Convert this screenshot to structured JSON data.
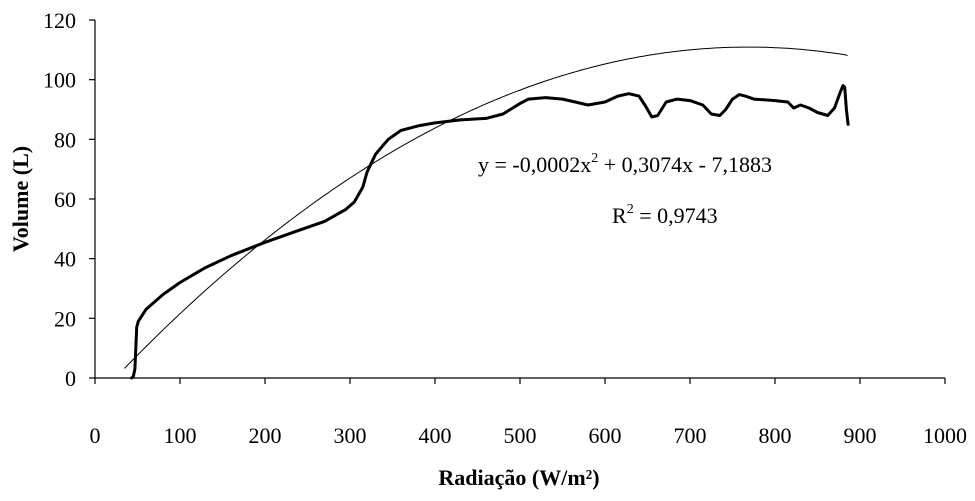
{
  "chart_data": {
    "type": "line",
    "xlabel": "Radiação (W/m²)",
    "ylabel": "Volume (L)",
    "xlim": [
      0,
      1000
    ],
    "ylim": [
      0,
      120
    ],
    "xticks": [
      "0",
      "100",
      "200",
      "300",
      "400",
      "500",
      "600",
      "700",
      "800",
      "900",
      "1000"
    ],
    "yticks": [
      "0",
      "20",
      "40",
      "60",
      "80",
      "100",
      "120"
    ],
    "grid": false,
    "legend": "none",
    "series": [
      {
        "style": "thick",
        "color": "#000000",
        "points": [
          [
            43,
            0
          ],
          [
            45,
            0.5
          ],
          [
            47,
            3
          ],
          [
            48,
            10
          ],
          [
            49,
            17
          ],
          [
            51,
            19
          ],
          [
            60,
            23
          ],
          [
            80,
            28
          ],
          [
            100,
            32
          ],
          [
            130,
            37
          ],
          [
            160,
            41
          ],
          [
            200,
            45.5
          ],
          [
            240,
            49.5
          ],
          [
            270,
            52.5
          ],
          [
            295,
            56.5
          ],
          [
            305,
            59
          ],
          [
            315,
            64
          ],
          [
            320,
            69
          ],
          [
            330,
            75
          ],
          [
            345,
            80
          ],
          [
            360,
            83
          ],
          [
            380,
            84.5
          ],
          [
            400,
            85.5
          ],
          [
            430,
            86.5
          ],
          [
            460,
            87
          ],
          [
            480,
            88.5
          ],
          [
            500,
            92
          ],
          [
            510,
            93.5
          ],
          [
            530,
            94
          ],
          [
            550,
            93.5
          ],
          [
            565,
            92.5
          ],
          [
            580,
            91.5
          ],
          [
            600,
            92.5
          ],
          [
            615,
            94.5
          ],
          [
            628,
            95.3
          ],
          [
            640,
            94.5
          ],
          [
            648,
            91
          ],
          [
            655,
            87.5
          ],
          [
            662,
            88
          ],
          [
            672,
            92.5
          ],
          [
            685,
            93.5
          ],
          [
            700,
            93
          ],
          [
            715,
            91.5
          ],
          [
            725,
            88.5
          ],
          [
            735,
            88
          ],
          [
            742,
            90
          ],
          [
            750,
            93.5
          ],
          [
            758,
            95
          ],
          [
            765,
            94.5
          ],
          [
            775,
            93.5
          ],
          [
            800,
            93
          ],
          [
            815,
            92.5
          ],
          [
            822,
            90.5
          ],
          [
            830,
            91.5
          ],
          [
            840,
            90.5
          ],
          [
            850,
            89
          ],
          [
            862,
            88
          ],
          [
            870,
            90.5
          ],
          [
            877,
            96
          ],
          [
            880,
            98
          ],
          [
            882,
            97.5
          ],
          [
            884,
            90
          ],
          [
            886,
            85
          ]
        ]
      },
      {
        "style": "trendline",
        "color": "#000000",
        "coefficients": [
          -0.0002,
          0.3074,
          -7.1883
        ],
        "x_range": [
          35,
          885
        ]
      }
    ],
    "annotations": [
      {
        "text": [
          "y = -0,0002x",
          "2",
          " + 0,3074x - 7,1883"
        ]
      },
      {
        "text": [
          "R",
          "2",
          " = 0,9743"
        ]
      }
    ]
  }
}
